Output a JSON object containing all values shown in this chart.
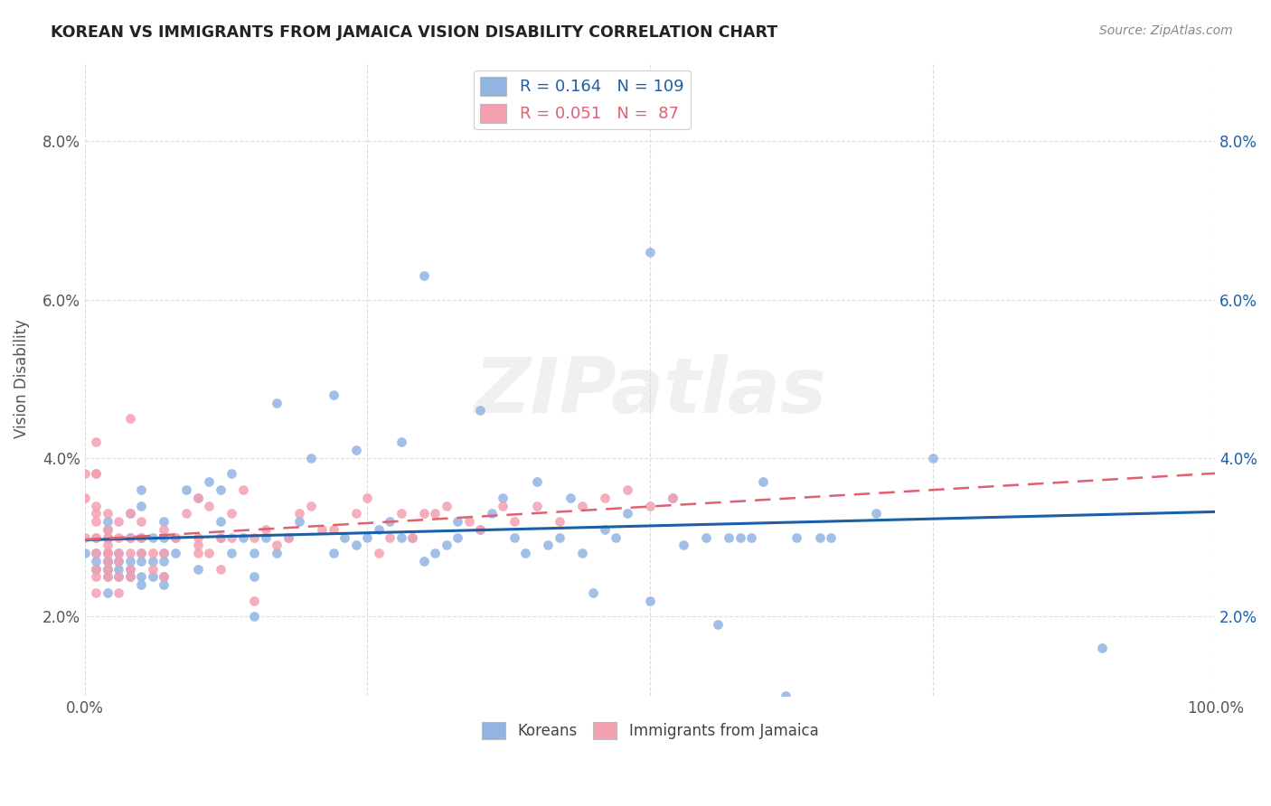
{
  "title": "KOREAN VS IMMIGRANTS FROM JAMAICA VISION DISABILITY CORRELATION CHART",
  "source": "Source: ZipAtlas.com",
  "ylabel_label": "Vision Disability",
  "watermark": "ZIPatlas",
  "korean_color": "#92b4e3",
  "jamaica_color": "#f4a0b0",
  "korean_line_color": "#1a5fa8",
  "jamaica_line_color": "#e06070",
  "background_color": "#ffffff",
  "grid_color": "#dddddd",
  "korean_R": "0.164",
  "korean_N": "109",
  "jamaica_R": "0.051",
  "jamaica_N": " 87",
  "korean_scatter_x": [
    0.0,
    0.01,
    0.01,
    0.01,
    0.02,
    0.02,
    0.02,
    0.02,
    0.02,
    0.02,
    0.02,
    0.02,
    0.02,
    0.02,
    0.02,
    0.03,
    0.03,
    0.03,
    0.03,
    0.04,
    0.04,
    0.04,
    0.04,
    0.04,
    0.05,
    0.05,
    0.05,
    0.05,
    0.05,
    0.05,
    0.05,
    0.06,
    0.06,
    0.06,
    0.07,
    0.07,
    0.07,
    0.07,
    0.07,
    0.07,
    0.08,
    0.08,
    0.09,
    0.1,
    0.1,
    0.11,
    0.12,
    0.12,
    0.12,
    0.13,
    0.13,
    0.14,
    0.15,
    0.15,
    0.15,
    0.16,
    0.17,
    0.17,
    0.18,
    0.19,
    0.2,
    0.22,
    0.22,
    0.23,
    0.24,
    0.24,
    0.25,
    0.26,
    0.27,
    0.28,
    0.28,
    0.29,
    0.3,
    0.3,
    0.31,
    0.32,
    0.33,
    0.33,
    0.35,
    0.35,
    0.36,
    0.37,
    0.38,
    0.39,
    0.4,
    0.41,
    0.42,
    0.43,
    0.44,
    0.45,
    0.46,
    0.47,
    0.48,
    0.5,
    0.5,
    0.52,
    0.53,
    0.55,
    0.56,
    0.57,
    0.58,
    0.59,
    0.6,
    0.62,
    0.63,
    0.65,
    0.66,
    0.7,
    0.75,
    0.9
  ],
  "korean_scatter_y": [
    0.028,
    0.026,
    0.027,
    0.028,
    0.023,
    0.025,
    0.026,
    0.027,
    0.028,
    0.03,
    0.03,
    0.031,
    0.032,
    0.027,
    0.026,
    0.025,
    0.026,
    0.027,
    0.028,
    0.025,
    0.026,
    0.027,
    0.03,
    0.033,
    0.024,
    0.025,
    0.027,
    0.028,
    0.03,
    0.034,
    0.036,
    0.025,
    0.027,
    0.03,
    0.024,
    0.025,
    0.027,
    0.028,
    0.03,
    0.032,
    0.028,
    0.03,
    0.036,
    0.026,
    0.035,
    0.037,
    0.036,
    0.032,
    0.03,
    0.028,
    0.038,
    0.03,
    0.025,
    0.028,
    0.02,
    0.03,
    0.028,
    0.047,
    0.03,
    0.032,
    0.04,
    0.028,
    0.048,
    0.03,
    0.041,
    0.029,
    0.03,
    0.031,
    0.032,
    0.03,
    0.042,
    0.03,
    0.027,
    0.063,
    0.028,
    0.029,
    0.03,
    0.032,
    0.031,
    0.046,
    0.033,
    0.035,
    0.03,
    0.028,
    0.037,
    0.029,
    0.03,
    0.035,
    0.028,
    0.023,
    0.031,
    0.03,
    0.033,
    0.022,
    0.066,
    0.035,
    0.029,
    0.03,
    0.019,
    0.03,
    0.03,
    0.03,
    0.037,
    0.01,
    0.03,
    0.03,
    0.03,
    0.033,
    0.04,
    0.016
  ],
  "jamaica_scatter_x": [
    0.0,
    0.0,
    0.0,
    0.01,
    0.01,
    0.01,
    0.01,
    0.01,
    0.01,
    0.01,
    0.01,
    0.01,
    0.01,
    0.01,
    0.01,
    0.02,
    0.02,
    0.02,
    0.02,
    0.02,
    0.02,
    0.02,
    0.02,
    0.02,
    0.02,
    0.03,
    0.03,
    0.03,
    0.03,
    0.03,
    0.03,
    0.04,
    0.04,
    0.04,
    0.04,
    0.04,
    0.04,
    0.05,
    0.05,
    0.05,
    0.06,
    0.06,
    0.07,
    0.07,
    0.07,
    0.08,
    0.09,
    0.1,
    0.1,
    0.1,
    0.1,
    0.11,
    0.11,
    0.12,
    0.12,
    0.13,
    0.13,
    0.14,
    0.15,
    0.15,
    0.16,
    0.17,
    0.18,
    0.19,
    0.2,
    0.21,
    0.22,
    0.24,
    0.25,
    0.26,
    0.27,
    0.28,
    0.29,
    0.3,
    0.31,
    0.32,
    0.34,
    0.35,
    0.37,
    0.38,
    0.4,
    0.42,
    0.44,
    0.46,
    0.48,
    0.5,
    0.52
  ],
  "jamaica_scatter_y": [
    0.03,
    0.035,
    0.038,
    0.023,
    0.025,
    0.026,
    0.028,
    0.03,
    0.03,
    0.032,
    0.033,
    0.034,
    0.038,
    0.038,
    0.042,
    0.025,
    0.026,
    0.027,
    0.028,
    0.028,
    0.029,
    0.03,
    0.03,
    0.031,
    0.033,
    0.023,
    0.025,
    0.027,
    0.028,
    0.03,
    0.032,
    0.025,
    0.026,
    0.028,
    0.03,
    0.033,
    0.045,
    0.028,
    0.03,
    0.032,
    0.026,
    0.028,
    0.025,
    0.028,
    0.031,
    0.03,
    0.033,
    0.028,
    0.029,
    0.03,
    0.035,
    0.028,
    0.034,
    0.026,
    0.03,
    0.03,
    0.033,
    0.036,
    0.022,
    0.03,
    0.031,
    0.029,
    0.03,
    0.033,
    0.034,
    0.031,
    0.031,
    0.033,
    0.035,
    0.028,
    0.03,
    0.033,
    0.03,
    0.033,
    0.033,
    0.034,
    0.032,
    0.031,
    0.034,
    0.032,
    0.034,
    0.032,
    0.034,
    0.035,
    0.036,
    0.034,
    0.035
  ]
}
